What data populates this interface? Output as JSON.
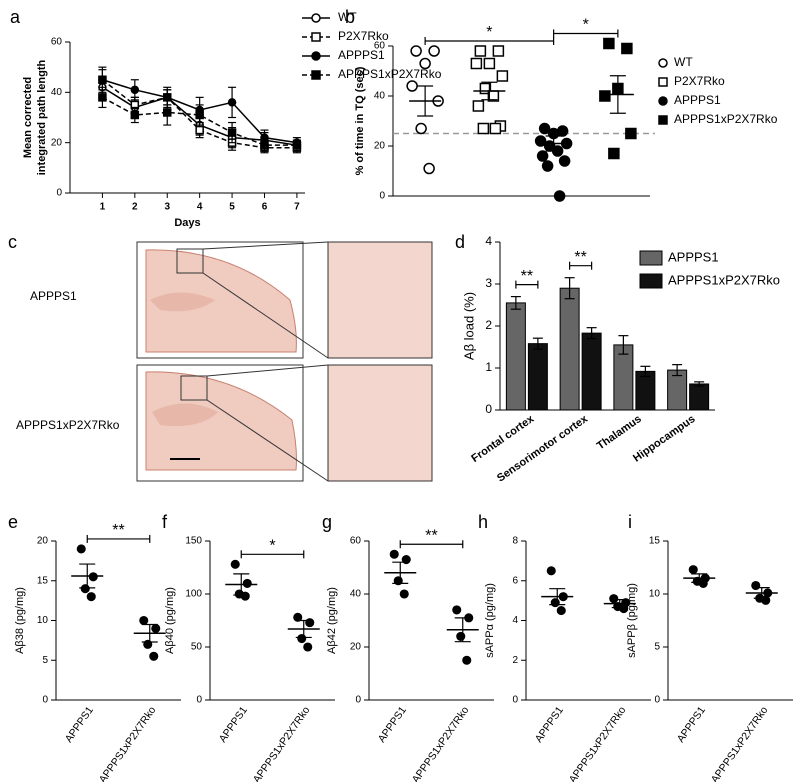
{
  "chart_data": [
    {
      "type": "line",
      "label": "a",
      "xlabel": "Days",
      "ylabel": [
        "Mean corrected",
        "integrated path length"
      ],
      "x": [
        1,
        2,
        3,
        4,
        5,
        6,
        7
      ],
      "xlim": [
        0,
        7.25
      ],
      "xticks": [
        1,
        2,
        3,
        4,
        5,
        6,
        7
      ],
      "ylim": [
        0,
        60
      ],
      "yticks": [
        0,
        20,
        40,
        60
      ],
      "series": [
        {
          "name": "WT",
          "color": "#000000",
          "marker": "circle",
          "filled": false,
          "dash": false,
          "values": [
            42,
            34,
            38,
            27,
            22,
            21,
            19
          ],
          "errors": [
            4,
            4,
            3,
            4,
            4,
            3,
            2
          ]
        },
        {
          "name": "P2X7Rko",
          "color": "#000000",
          "marker": "square",
          "filled": false,
          "dash": true,
          "values": [
            45,
            35,
            38,
            25,
            20,
            18,
            18
          ],
          "errors": [
            4,
            3,
            3,
            3,
            3,
            2,
            2
          ]
        },
        {
          "name": "APPPS1",
          "color": "#000000",
          "marker": "circle",
          "filled": true,
          "dash": false,
          "values": [
            45,
            41,
            38,
            33,
            36,
            22,
            20
          ],
          "errors": [
            5,
            4,
            4,
            5,
            6,
            3,
            2
          ]
        },
        {
          "name": "APPPS1xP2X7Rko",
          "color": "#000000",
          "marker": "square",
          "filled": true,
          "dash": true,
          "values": [
            38,
            31,
            32,
            31,
            24,
            19,
            19
          ],
          "errors": [
            4,
            3,
            5,
            4,
            4,
            2,
            2
          ]
        }
      ]
    },
    {
      "type": "dot",
      "label": "b",
      "ylabel": "% of time in TQ (sec)",
      "ylim": [
        0,
        60
      ],
      "yticks": [
        0,
        20,
        40,
        60
      ],
      "legend": "right",
      "reference_line": 25,
      "groups": [
        {
          "name": "WT",
          "marker": "circle",
          "filled": false,
          "points": [
            58,
            58,
            53,
            44,
            38,
            27,
            11
          ],
          "mean": 38,
          "sem": 6
        },
        {
          "name": "P2X7Rko",
          "marker": "square",
          "filled": false,
          "points": [
            58,
            58,
            53,
            53,
            48,
            43,
            40,
            36,
            28,
            27,
            27
          ],
          "mean": 42,
          "sem": 3.5
        },
        {
          "name": "APPPS1",
          "marker": "circle",
          "filled": true,
          "points": [
            27,
            26,
            25,
            22,
            21,
            20,
            18,
            16,
            14,
            12,
            0
          ],
          "mean": 21,
          "sem": 3
        },
        {
          "name": "APPPS1xP2X7Rko",
          "marker": "square",
          "filled": true,
          "points": [
            61,
            59,
            43,
            40,
            25,
            17
          ],
          "mean": 40.6,
          "sem": 7.5
        }
      ],
      "comparisons": [
        {
          "groups": [
            0,
            2
          ],
          "label": "*"
        },
        {
          "groups": [
            2,
            3
          ],
          "label": "*"
        }
      ]
    },
    {
      "type": "bar",
      "label": "d",
      "ylabel": "Aβ load (%)",
      "ylim": [
        0,
        4
      ],
      "yticks": [
        0,
        1,
        2,
        3,
        4
      ],
      "categories": [
        "Frontal cortex",
        "Sensorimotor cortex",
        "Thalamus",
        "Hippocampus"
      ],
      "series": [
        {
          "name": "APPPS1",
          "color": "#666666",
          "values": [
            2.55,
            2.9,
            1.55,
            0.95
          ],
          "errors": [
            0.15,
            0.25,
            0.22,
            0.13
          ]
        },
        {
          "name": "APPPS1xP2X7Rko",
          "color": "#111111",
          "values": [
            1.58,
            1.83,
            0.92,
            0.62
          ],
          "errors": [
            0.13,
            0.13,
            0.12,
            0.05
          ]
        }
      ],
      "comparisons": [
        {
          "category": 0,
          "label": "**"
        },
        {
          "category": 1,
          "label": "**"
        }
      ]
    },
    {
      "type": "dot",
      "label": "e",
      "ylabel": "Aβ38 (pg/mg)",
      "ylim": [
        0,
        20
      ],
      "yticks": [
        0,
        5,
        10,
        15,
        20
      ],
      "groups": [
        {
          "name": "APPPS1",
          "marker": "circle",
          "filled": true,
          "points": [
            19,
            15.5,
            14,
            13
          ],
          "mean": 15.6,
          "sem": 1.5
        },
        {
          "name": "APPPS1xP2X7Rko",
          "marker": "circle",
          "filled": true,
          "points": [
            10,
            9,
            7,
            5.5
          ],
          "mean": 8.4,
          "sem": 1.1
        }
      ],
      "comparisons": [
        {
          "groups": [
            0,
            1
          ],
          "label": "**"
        }
      ]
    },
    {
      "type": "dot",
      "label": "f",
      "ylabel": "Aβ40 (pg/mg)",
      "ylim": [
        0,
        150
      ],
      "yticks": [
        0,
        50,
        100,
        150
      ],
      "groups": [
        {
          "name": "APPPS1",
          "marker": "circle",
          "filled": true,
          "points": [
            128,
            110,
            100,
            98
          ],
          "mean": 109,
          "sem": 10
        },
        {
          "name": "APPPS1xP2X7Rko",
          "marker": "circle",
          "filled": true,
          "points": [
            78,
            73,
            58,
            50
          ],
          "mean": 67,
          "sem": 8
        }
      ],
      "comparisons": [
        {
          "groups": [
            0,
            1
          ],
          "label": "*"
        }
      ]
    },
    {
      "type": "dot",
      "label": "g",
      "ylabel": "Aβ42 (pg/mg)",
      "ylim": [
        0,
        60
      ],
      "yticks": [
        0,
        20,
        40,
        60
      ],
      "groups": [
        {
          "name": "APPPS1",
          "marker": "circle",
          "filled": true,
          "points": [
            55,
            53,
            45,
            40
          ],
          "mean": 48,
          "sem": 4
        },
        {
          "name": "APPPS1xP2X7Rko",
          "marker": "circle",
          "filled": true,
          "points": [
            34,
            31,
            24,
            15
          ],
          "mean": 26.5,
          "sem": 4.5
        }
      ],
      "comparisons": [
        {
          "groups": [
            0,
            1
          ],
          "label": "**"
        }
      ]
    },
    {
      "type": "dot",
      "label": "h",
      "ylabel": "sAPPα (pg/mg)",
      "ylim": [
        0,
        8
      ],
      "yticks": [
        0,
        2,
        4,
        6,
        8
      ],
      "groups": [
        {
          "name": "APPPS1",
          "marker": "circle",
          "filled": true,
          "points": [
            6.5,
            5.2,
            4.9,
            4.5
          ],
          "mean": 5.2,
          "sem": 0.4
        },
        {
          "name": "APPPS1xP2X7Rko",
          "marker": "circle",
          "filled": true,
          "points": [
            5.1,
            4.9,
            4.7,
            4.6
          ],
          "mean": 4.85,
          "sem": 0.2
        }
      ],
      "comparisons": []
    },
    {
      "type": "dot",
      "label": "i",
      "ylabel": "sAPPβ (pg/mg)",
      "ylim": [
        0,
        15
      ],
      "yticks": [
        0,
        5,
        10,
        15
      ],
      "groups": [
        {
          "name": "APPPS1",
          "marker": "circle",
          "filled": true,
          "points": [
            12.3,
            11.5,
            11.2,
            11.0
          ],
          "mean": 11.5,
          "sem": 0.4
        },
        {
          "name": "APPPS1xP2X7Rko",
          "marker": "circle",
          "filled": true,
          "points": [
            10.8,
            10.1,
            9.6,
            9.4
          ],
          "mean": 10.1,
          "sem": 0.5
        }
      ],
      "comparisons": []
    }
  ],
  "panel_c": {
    "label": "c",
    "rows": [
      "APPPS1",
      "APPPS1xP2X7Rko"
    ]
  }
}
